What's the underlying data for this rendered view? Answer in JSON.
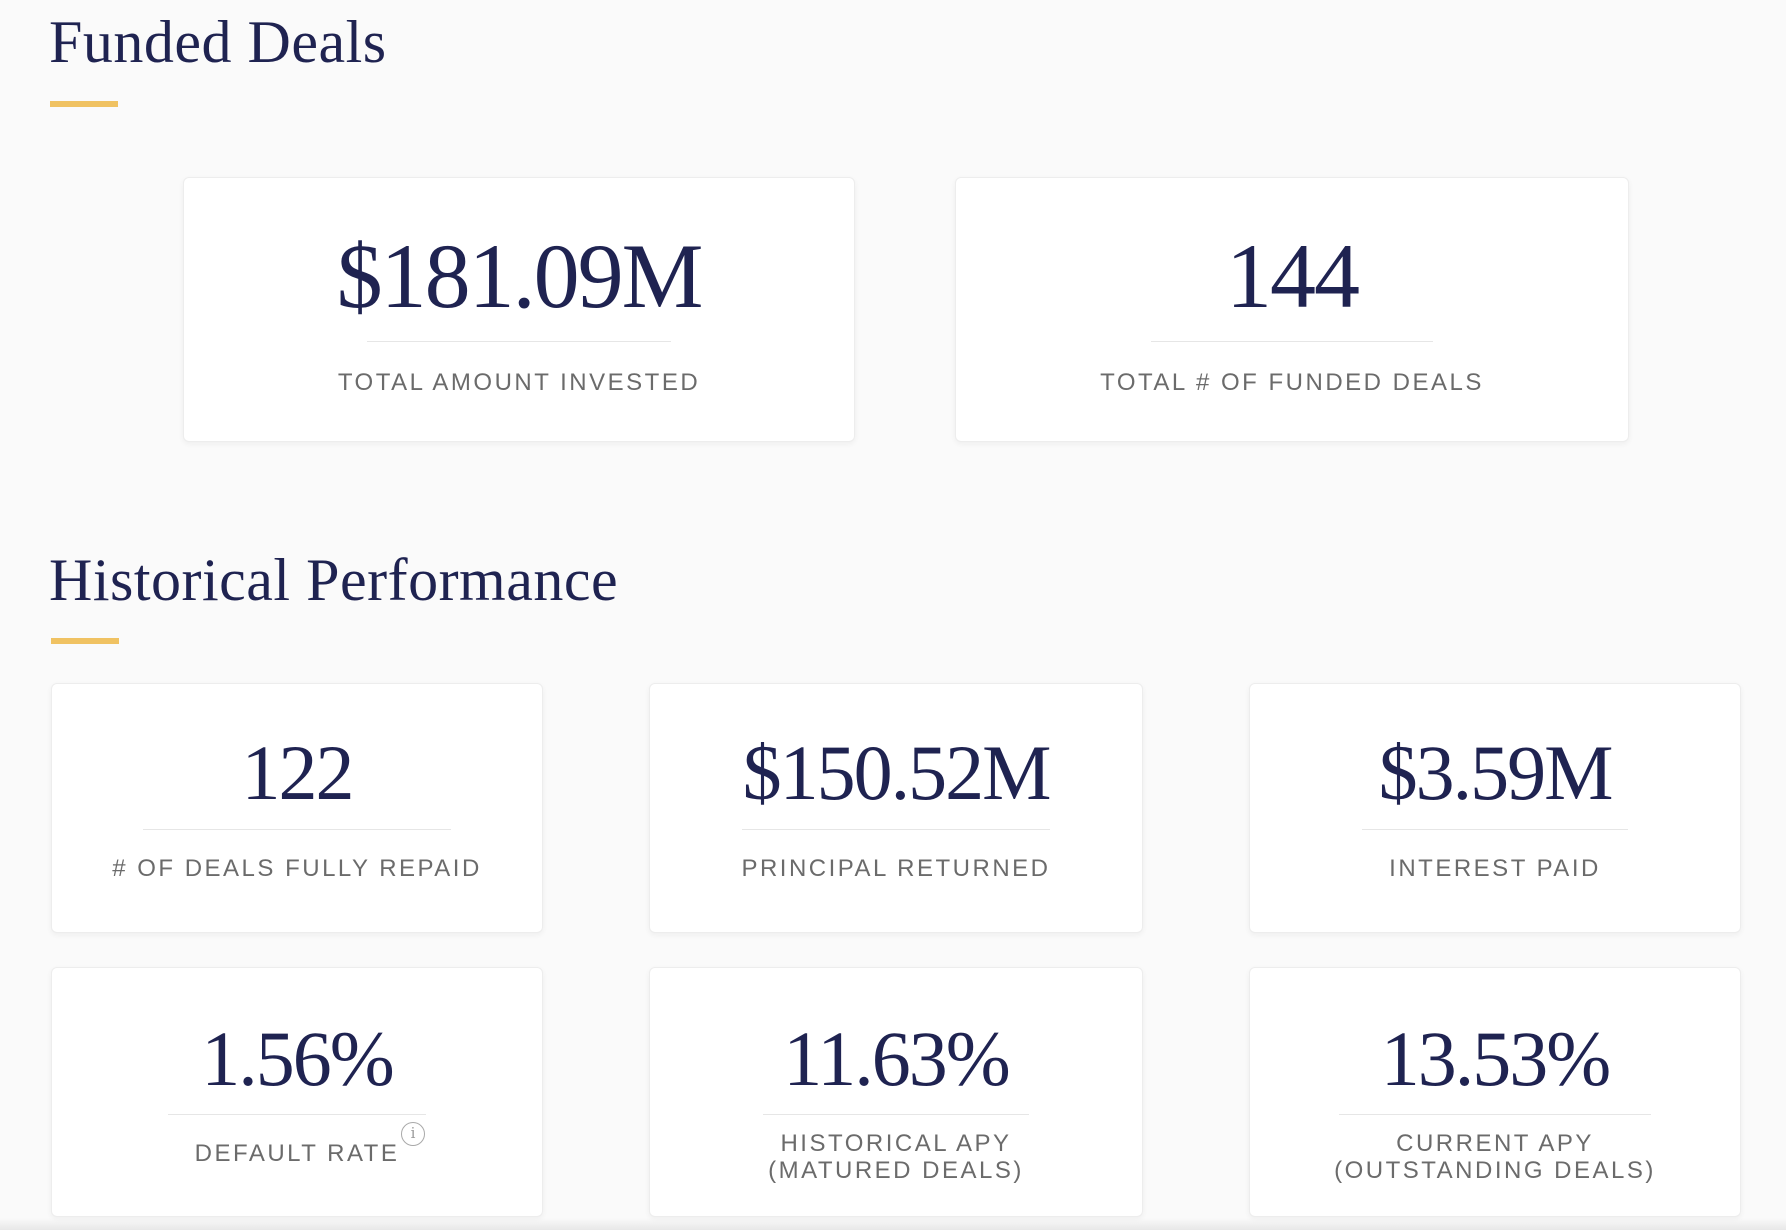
{
  "funded_deals": {
    "title": "Funded Deals",
    "stats": [
      {
        "value": "$181.09M",
        "label": "TOTAL AMOUNT INVESTED"
      },
      {
        "value": "144",
        "label": "TOTAL # OF FUNDED DEALS"
      }
    ]
  },
  "historical_performance": {
    "title": "Historical Performance",
    "stats": [
      {
        "value": "122",
        "label": "# OF DEALS FULLY REPAID"
      },
      {
        "value": "$150.52M",
        "label": "PRINCIPAL RETURNED"
      },
      {
        "value": "$3.59M",
        "label": "INTEREST PAID"
      },
      {
        "value": "1.56%",
        "label": "DEFAULT RATE",
        "info_icon": "info-icon",
        "info_glyph": "i"
      },
      {
        "value": "11.63%",
        "label_line1": "HISTORICAL APY",
        "label_line2": "(MATURED DEALS)"
      },
      {
        "value": "13.53%",
        "label_line1": "CURRENT APY",
        "label_line2": "(OUTSTANDING DEALS)"
      }
    ]
  },
  "colors": {
    "heading": "#1f2351",
    "accent": "#f0c262",
    "label": "#6b6b6b",
    "background": "#fafafa",
    "card": "#ffffff"
  }
}
